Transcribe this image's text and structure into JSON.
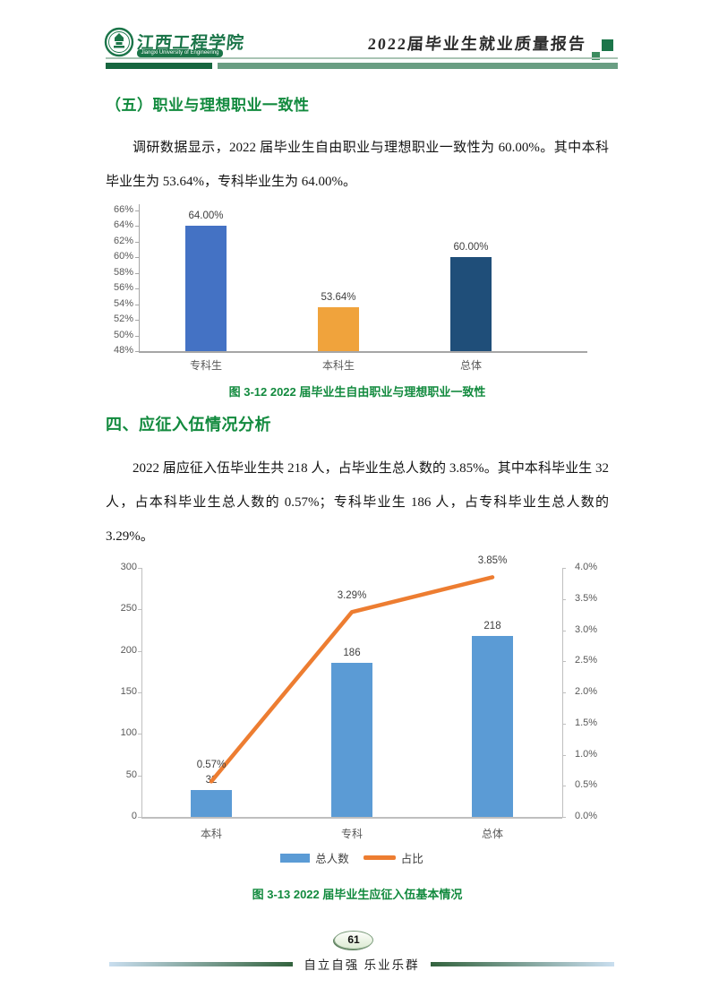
{
  "header": {
    "university_cn": "江西工程学院",
    "university_en": "Jiangxi University of Engineering",
    "report_title": "2022届毕业生就业质量报告"
  },
  "brand": {
    "dark_green": "#17663F",
    "sage_green": "#6A9E83",
    "heading_green": "#128A3E",
    "logo_green": "#1B7549"
  },
  "section_career": {
    "heading": "（五）职业与理想职业一致性",
    "paragraph": "调研数据显示，2022 届毕业生自由职业与理想职业一致性为 60.00%。其中本科毕业生为 53.64%，专科毕业生为 64.00%。"
  },
  "figure_12_caption": "图 3-12 2022 届毕业生自由职业与理想职业一致性",
  "section_military": {
    "heading": "四、应征入伍情况分析",
    "paragraph": "2022 届应征入伍毕业生共 218 人，占毕业生总人数的 3.85%。其中本科毕业生 32 人，占本科毕业生总人数的 0.57%；专科毕业生 186 人，占专科毕业生总人数的 3.29%。"
  },
  "figure_13_caption": "图 3-13 2022 届毕业生应征入伍基本情况",
  "page_number": "61",
  "footer_motto": "自立自强  乐业乐群",
  "chart_data": [
    {
      "type": "bar",
      "title": "图 3-12 2022 届毕业生自由职业与理想职业一致性",
      "categories": [
        "专科生",
        "本科生",
        "总体"
      ],
      "values": [
        64.0,
        53.64,
        60.0
      ],
      "value_labels": [
        "64.00%",
        "53.64%",
        "60.00%"
      ],
      "bar_colors": [
        "#4472C4",
        "#F0A33C",
        "#1F4E79"
      ],
      "ylim": [
        48,
        66
      ],
      "ytick_step": 2,
      "ytick_labels": [
        "48%",
        "50%",
        "52%",
        "54%",
        "56%",
        "58%",
        "60%",
        "62%",
        "64%",
        "66%"
      ],
      "grid": false,
      "legend": null,
      "axis_color": "#A6A6A6",
      "label_color": "#595959"
    },
    {
      "type": "bar+line",
      "title": "图 3-13 2022 届毕业生应征入伍基本情况",
      "categories": [
        "本科",
        "专科",
        "总体"
      ],
      "series": [
        {
          "name": "总人数",
          "type": "bar",
          "axis": "left",
          "values": [
            32,
            186,
            218
          ],
          "labels": [
            "32",
            "186",
            "218"
          ],
          "color": "#5B9BD5"
        },
        {
          "name": "占比",
          "type": "line",
          "axis": "right",
          "values": [
            0.57,
            3.29,
            3.85
          ],
          "labels": [
            "0.57%",
            "3.29%",
            "3.85%"
          ],
          "color": "#ED7D31"
        }
      ],
      "left_axis": {
        "min": 0,
        "max": 300,
        "step": 50,
        "tick_labels": [
          "0",
          "50",
          "100",
          "150",
          "200",
          "250",
          "300"
        ]
      },
      "right_axis": {
        "min": 0,
        "max": 4,
        "step": 0.5,
        "tick_labels": [
          "0.0%",
          "0.5%",
          "1.0%",
          "1.5%",
          "2.0%",
          "2.5%",
          "3.0%",
          "3.5%",
          "4.0%"
        ]
      },
      "grid": false,
      "legend": [
        "总人数",
        "占比"
      ],
      "legend_position": "bottom",
      "axis_color": "#BFBFBF",
      "label_color": "#595959"
    }
  ]
}
